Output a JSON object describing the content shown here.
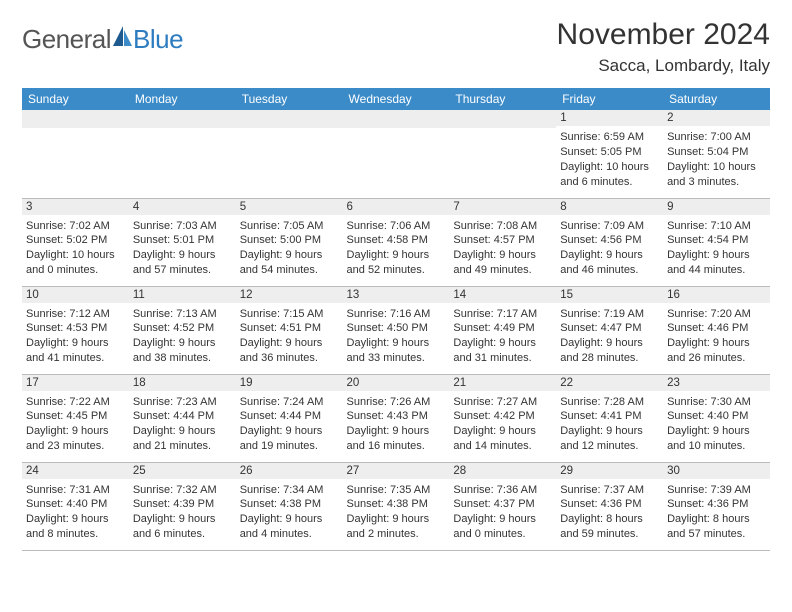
{
  "logo": {
    "general": "General",
    "blue": "Blue"
  },
  "header": {
    "title": "November 2024",
    "location": "Sacca, Lombardy, Italy"
  },
  "colors": {
    "header_bg": "#3b8bc9",
    "header_text": "#ffffff",
    "date_bar_bg": "#eeeeee",
    "row_border": "#bbbbbb",
    "logo_gray": "#555555",
    "logo_blue": "#2e7cc0",
    "sail_dark": "#1e5a8e",
    "sail_light": "#3b8bc9"
  },
  "dayNames": [
    "Sunday",
    "Monday",
    "Tuesday",
    "Wednesday",
    "Thursday",
    "Friday",
    "Saturday"
  ],
  "weeks": [
    [
      null,
      null,
      null,
      null,
      null,
      {
        "d": "1",
        "sr": "6:59 AM",
        "ss": "5:05 PM",
        "dl": "10 hours and 6 minutes."
      },
      {
        "d": "2",
        "sr": "7:00 AM",
        "ss": "5:04 PM",
        "dl": "10 hours and 3 minutes."
      }
    ],
    [
      {
        "d": "3",
        "sr": "7:02 AM",
        "ss": "5:02 PM",
        "dl": "10 hours and 0 minutes."
      },
      {
        "d": "4",
        "sr": "7:03 AM",
        "ss": "5:01 PM",
        "dl": "9 hours and 57 minutes."
      },
      {
        "d": "5",
        "sr": "7:05 AM",
        "ss": "5:00 PM",
        "dl": "9 hours and 54 minutes."
      },
      {
        "d": "6",
        "sr": "7:06 AM",
        "ss": "4:58 PM",
        "dl": "9 hours and 52 minutes."
      },
      {
        "d": "7",
        "sr": "7:08 AM",
        "ss": "4:57 PM",
        "dl": "9 hours and 49 minutes."
      },
      {
        "d": "8",
        "sr": "7:09 AM",
        "ss": "4:56 PM",
        "dl": "9 hours and 46 minutes."
      },
      {
        "d": "9",
        "sr": "7:10 AM",
        "ss": "4:54 PM",
        "dl": "9 hours and 44 minutes."
      }
    ],
    [
      {
        "d": "10",
        "sr": "7:12 AM",
        "ss": "4:53 PM",
        "dl": "9 hours and 41 minutes."
      },
      {
        "d": "11",
        "sr": "7:13 AM",
        "ss": "4:52 PM",
        "dl": "9 hours and 38 minutes."
      },
      {
        "d": "12",
        "sr": "7:15 AM",
        "ss": "4:51 PM",
        "dl": "9 hours and 36 minutes."
      },
      {
        "d": "13",
        "sr": "7:16 AM",
        "ss": "4:50 PM",
        "dl": "9 hours and 33 minutes."
      },
      {
        "d": "14",
        "sr": "7:17 AM",
        "ss": "4:49 PM",
        "dl": "9 hours and 31 minutes."
      },
      {
        "d": "15",
        "sr": "7:19 AM",
        "ss": "4:47 PM",
        "dl": "9 hours and 28 minutes."
      },
      {
        "d": "16",
        "sr": "7:20 AM",
        "ss": "4:46 PM",
        "dl": "9 hours and 26 minutes."
      }
    ],
    [
      {
        "d": "17",
        "sr": "7:22 AM",
        "ss": "4:45 PM",
        "dl": "9 hours and 23 minutes."
      },
      {
        "d": "18",
        "sr": "7:23 AM",
        "ss": "4:44 PM",
        "dl": "9 hours and 21 minutes."
      },
      {
        "d": "19",
        "sr": "7:24 AM",
        "ss": "4:44 PM",
        "dl": "9 hours and 19 minutes."
      },
      {
        "d": "20",
        "sr": "7:26 AM",
        "ss": "4:43 PM",
        "dl": "9 hours and 16 minutes."
      },
      {
        "d": "21",
        "sr": "7:27 AM",
        "ss": "4:42 PM",
        "dl": "9 hours and 14 minutes."
      },
      {
        "d": "22",
        "sr": "7:28 AM",
        "ss": "4:41 PM",
        "dl": "9 hours and 12 minutes."
      },
      {
        "d": "23",
        "sr": "7:30 AM",
        "ss": "4:40 PM",
        "dl": "9 hours and 10 minutes."
      }
    ],
    [
      {
        "d": "24",
        "sr": "7:31 AM",
        "ss": "4:40 PM",
        "dl": "9 hours and 8 minutes."
      },
      {
        "d": "25",
        "sr": "7:32 AM",
        "ss": "4:39 PM",
        "dl": "9 hours and 6 minutes."
      },
      {
        "d": "26",
        "sr": "7:34 AM",
        "ss": "4:38 PM",
        "dl": "9 hours and 4 minutes."
      },
      {
        "d": "27",
        "sr": "7:35 AM",
        "ss": "4:38 PM",
        "dl": "9 hours and 2 minutes."
      },
      {
        "d": "28",
        "sr": "7:36 AM",
        "ss": "4:37 PM",
        "dl": "9 hours and 0 minutes."
      },
      {
        "d": "29",
        "sr": "7:37 AM",
        "ss": "4:36 PM",
        "dl": "8 hours and 59 minutes."
      },
      {
        "d": "30",
        "sr": "7:39 AM",
        "ss": "4:36 PM",
        "dl": "8 hours and 57 minutes."
      }
    ]
  ],
  "labels": {
    "sunrise": "Sunrise:",
    "sunset": "Sunset:",
    "daylight": "Daylight:"
  }
}
